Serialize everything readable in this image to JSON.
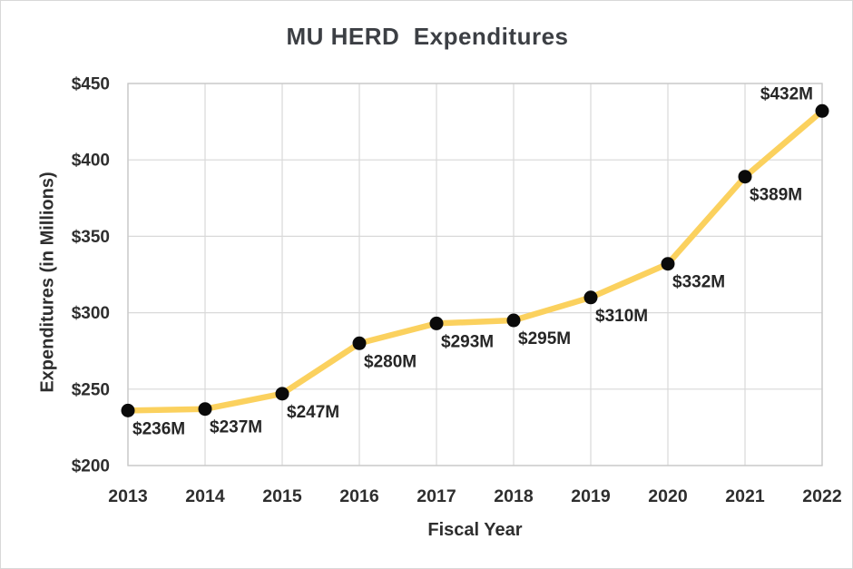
{
  "chart_data": {
    "type": "line",
    "title": "MU HERD  Expenditures",
    "xlabel": "Fiscal Year",
    "ylabel": "Expenditures (in Millions)",
    "categories": [
      "2013",
      "2014",
      "2015",
      "2016",
      "2017",
      "2018",
      "2019",
      "2020",
      "2021",
      "2022"
    ],
    "series": [
      {
        "name": "MU HERD Expenditures",
        "values": [
          236,
          237,
          247,
          280,
          293,
          295,
          310,
          332,
          389,
          432
        ],
        "point_labels": [
          "$236M",
          "$237M",
          "$247M",
          "$280M",
          "$293M",
          "$295M",
          "$310M",
          "$332M",
          "$389M",
          "$432M"
        ],
        "label_placement": [
          "below",
          "below",
          "below",
          "below",
          "below",
          "below",
          "below",
          "below",
          "below",
          "above"
        ]
      }
    ],
    "ylim": [
      200,
      450
    ],
    "y_ticks": [
      200,
      250,
      300,
      350,
      400,
      450
    ],
    "y_tick_labels": [
      "$200",
      "$250",
      "$300",
      "$350",
      "$400",
      "$450"
    ],
    "grid": true,
    "legend": "none",
    "colors": {
      "line": "#FBD15E",
      "marker": "#0a0a0a",
      "grid": "#d9d9d9",
      "plot_border": "#c9c9c9",
      "tick_text": "#2e2e2e",
      "data_label_text": "#262626",
      "title_text": "#3c3f44"
    }
  }
}
